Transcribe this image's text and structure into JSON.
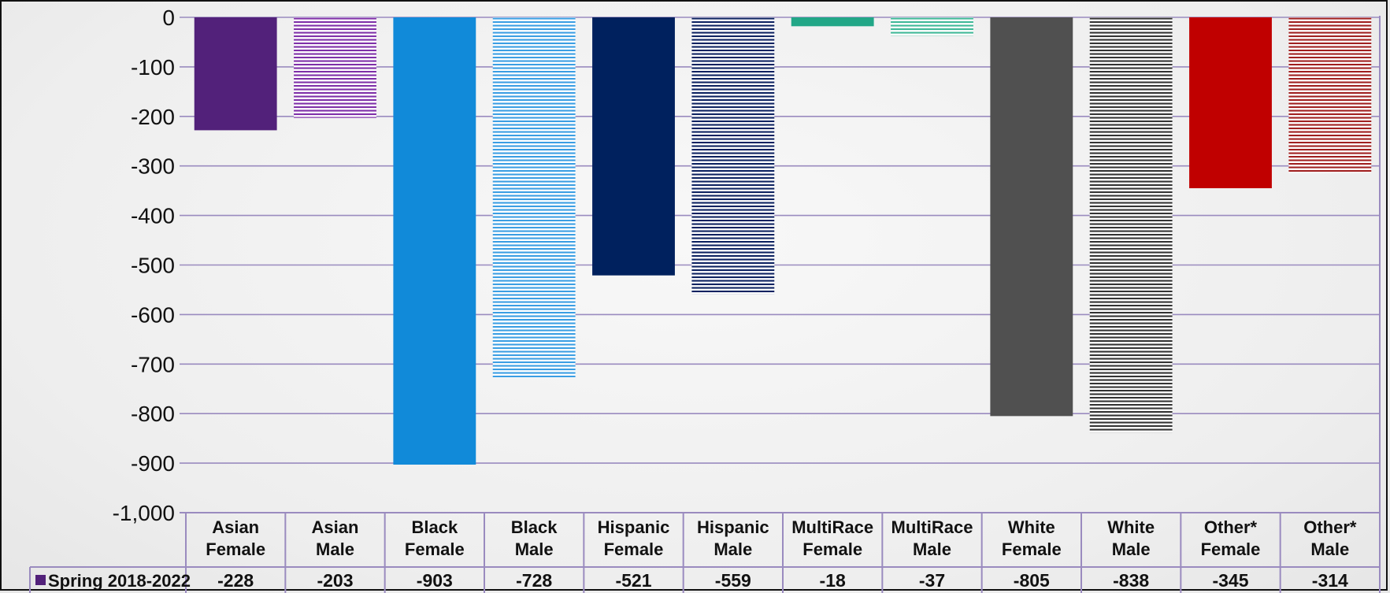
{
  "chart_data": {
    "type": "bar",
    "categories": [
      [
        "Asian",
        "Female"
      ],
      [
        "Asian",
        "Male"
      ],
      [
        "Black",
        "Female"
      ],
      [
        "Black",
        "Male"
      ],
      [
        "Hispanic",
        "Female"
      ],
      [
        "Hispanic",
        "Male"
      ],
      [
        "MultiRace",
        "Female"
      ],
      [
        "MultiRace",
        "Male"
      ],
      [
        "White",
        "Female"
      ],
      [
        "White",
        "Male"
      ],
      [
        "Other*",
        "Female"
      ],
      [
        "Other*",
        "Male"
      ]
    ],
    "series": [
      {
        "name": "Spring 2018-2022",
        "values": [
          -228,
          -203,
          -903,
          -728,
          -521,
          -559,
          -18,
          -37,
          -805,
          -838,
          -345,
          -314
        ]
      }
    ],
    "value_labels": [
      "-228",
      "-203",
      "-903",
      "-728",
      "-521",
      "-559",
      "-18",
      "-37",
      "-805",
      "-838",
      "-345",
      "-314"
    ],
    "ylim": [
      -1000,
      0
    ],
    "yticks": [
      0,
      -100,
      -200,
      -300,
      -400,
      -500,
      -600,
      -700,
      -800,
      -900,
      -1000
    ],
    "ytick_labels": [
      "0",
      "-100",
      "-200",
      "-300",
      "-400",
      "-500",
      "-600",
      "-700",
      "-800",
      "-900",
      "-1,000"
    ],
    "grid": true,
    "legend": "data-table",
    "bar_colors": [
      "#52217a",
      "#7e2fa8",
      "#118ad9",
      "#3a9ee3",
      "#00215e",
      "#0c2160",
      "#22a787",
      "#3fb897",
      "#505050",
      "#333333",
      "#c00000",
      "#a01f1f"
    ],
    "bar_patterns": [
      "solid",
      "hstripe",
      "solid",
      "hstripe",
      "solid",
      "hstripe",
      "solid",
      "hstripe",
      "solid",
      "hstripe",
      "solid",
      "hstripe"
    ],
    "grid_color": "#9a8bbf",
    "legend_swatch_color": "#52217a"
  }
}
